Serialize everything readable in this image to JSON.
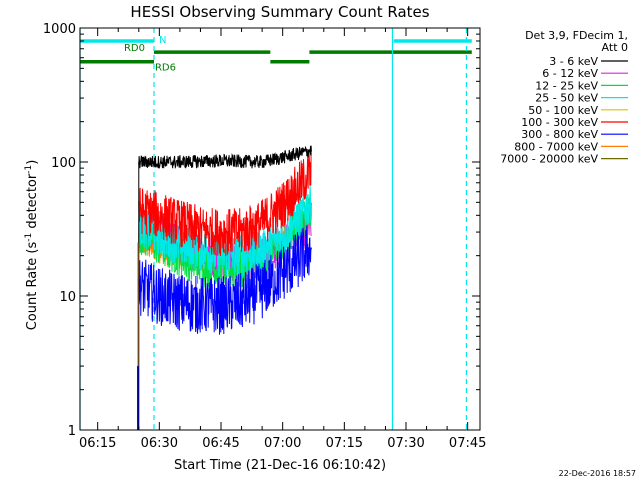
{
  "chart_data": {
    "type": "line",
    "title": "HESSI Observing Summary Count Rates",
    "xlabel": "Start Time (21-Dec-16 06:10:42)",
    "ylabel_main": "Count Rate (s",
    "ylabel_sup1": "-1",
    "ylabel_mid": " detector",
    "ylabel_sup2": "-1",
    "ylabel_end": ")",
    "y_scale": "log",
    "ylim": [
      1,
      1000
    ],
    "xlim": [
      "06:10:42",
      "07:48:00"
    ],
    "x_ticks": [
      "06:15",
      "06:30",
      "06:45",
      "07:00",
      "07:15",
      "07:30",
      "07:45"
    ],
    "y_ticks": [
      "1",
      "10",
      "100",
      "1000"
    ],
    "legend": {
      "placement": "right",
      "header_line1": "Det 3,9, FDecim 1,",
      "header_line2": "Att 0",
      "entries": [
        {
          "label": "3 - 6 keV",
          "color": "#000000"
        },
        {
          "label": "6 - 12 keV",
          "color": "#e020e0"
        },
        {
          "label": "12 - 25 keV",
          "color": "#00e040"
        },
        {
          "label": "25 - 50 keV",
          "color": "#00e8e8"
        },
        {
          "label": "50 - 100 keV",
          "color": "#e0c000"
        },
        {
          "label": "100 - 300 keV",
          "color": "#ff0000"
        },
        {
          "label": "300 - 800 keV",
          "color": "#0000ff"
        },
        {
          "label": "800 - 7000 keV",
          "color": "#ff8000"
        },
        {
          "label": "7000 - 20000 keV",
          "color": "#6a6a00"
        }
      ]
    },
    "series": [
      {
        "name": "3 - 6 keV",
        "color": "#000000",
        "x": [
          "06:25",
          "06:35",
          "06:45",
          "06:55",
          "07:00",
          "07:05",
          "07:07"
        ],
        "values": [
          100,
          100,
          102,
          100,
          108,
          118,
          122
        ]
      },
      {
        "name": "6 - 12 keV",
        "color": "#e020e0",
        "x": [
          "06:25",
          "06:30",
          "06:35",
          "06:40",
          "06:45",
          "06:50",
          "06:55",
          "07:00",
          "07:05",
          "07:07"
        ],
        "values": [
          34,
          28,
          24,
          21,
          19,
          18,
          20,
          24,
          32,
          38
        ]
      },
      {
        "name": "12 - 25 keV",
        "color": "#00e040",
        "x": [
          "06:25",
          "06:30",
          "06:35",
          "06:40",
          "06:45",
          "06:50",
          "06:55",
          "07:00",
          "07:05",
          "07:07"
        ],
        "values": [
          30,
          24,
          20,
          17,
          16,
          16,
          18,
          24,
          38,
          48
        ]
      },
      {
        "name": "25 - 50 keV",
        "color": "#00e8e8",
        "x": [
          "06:25",
          "06:30",
          "06:35",
          "06:40",
          "06:45",
          "06:50",
          "06:55",
          "07:00",
          "07:05",
          "07:07"
        ],
        "values": [
          34,
          28,
          24,
          22,
          20,
          20,
          22,
          28,
          42,
          52
        ]
      },
      {
        "name": "100 - 300 keV",
        "color": "#ff0000",
        "x": [
          "06:25",
          "06:30",
          "06:35",
          "06:40",
          "06:45",
          "06:50",
          "06:55",
          "07:00",
          "07:05",
          "07:07"
        ],
        "values": [
          44,
          40,
          35,
          31,
          30,
          30,
          35,
          48,
          72,
          85
        ]
      },
      {
        "name": "300 - 800 keV",
        "color": "#0000ff",
        "x": [
          "06:25",
          "06:30",
          "06:35",
          "06:40",
          "06:45",
          "06:50",
          "06:55",
          "07:00",
          "07:05",
          "07:07"
        ],
        "values": [
          12,
          10,
          9,
          8.5,
          8.5,
          9,
          11,
          15,
          20,
          23
        ]
      },
      {
        "name": "800 - 7000 keV",
        "color": "#ff8000",
        "x": [
          "06:25",
          "06:30",
          "06:35",
          "06:40",
          "06:45",
          "06:50",
          "06:55",
          "07:00",
          "07:05",
          "07:07"
        ],
        "values": [
          25,
          22,
          20,
          19,
          19,
          19,
          21,
          26,
          34,
          40
        ]
      }
    ],
    "markers": [
      {
        "type": "solid",
        "time": "06:10:42",
        "color": "#00e8e8"
      },
      {
        "type": "dashed",
        "time": "06:28:42",
        "color": "#00e8e8"
      },
      {
        "type": "solid",
        "time": "07:26:42",
        "color": "#00e8e8"
      },
      {
        "type": "dashed",
        "time": "07:44:42",
        "color": "#00e8e8"
      }
    ],
    "bars": [
      {
        "label": "N",
        "color": "#00e8e8",
        "level": 800,
        "segments": [
          [
            "06:10:42",
            "06:28:42"
          ],
          [
            "07:27:00",
            "07:46:00"
          ]
        ]
      },
      {
        "label": "RD0",
        "color": "#007a00",
        "level": 660,
        "segments": [
          [
            "06:28:42",
            "06:57:00"
          ],
          [
            "07:06:30",
            "07:46:00"
          ]
        ]
      },
      {
        "label": "RD6",
        "color": "#007a00",
        "level": 560,
        "segments": [
          [
            "06:10:42",
            "06:28:42"
          ],
          [
            "06:57:00",
            "07:06:30"
          ]
        ]
      }
    ],
    "footer_date": "22-Dec-2016 18:57"
  }
}
